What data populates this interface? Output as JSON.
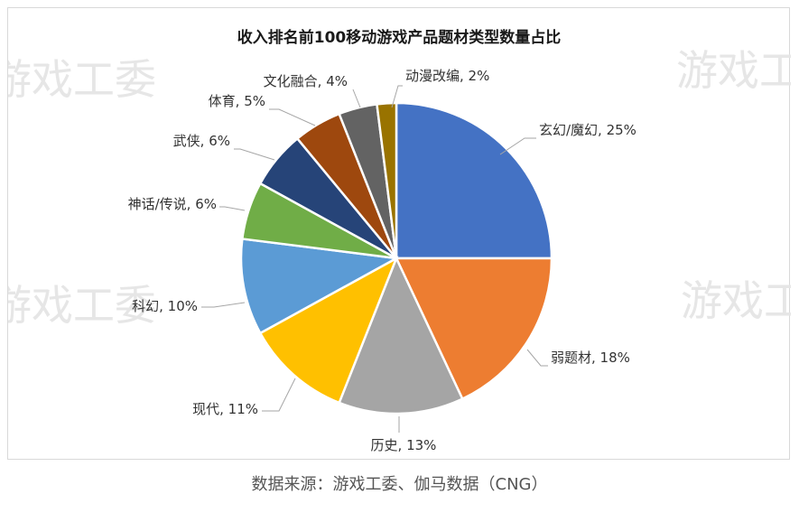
{
  "chart_data": {
    "type": "pie",
    "title": "收入排名前100移动游戏产品题材类型数量占比",
    "slices": [
      {
        "label": "玄幻/魔幻, 25%",
        "value": 25,
        "color": "#4472C4"
      },
      {
        "label": "弱题材, 18%",
        "value": 18,
        "color": "#ED7D31"
      },
      {
        "label": "历史, 13%",
        "value": 13,
        "color": "#A5A5A5"
      },
      {
        "label": "现代, 11%",
        "value": 11,
        "color": "#FFC000"
      },
      {
        "label": "科幻, 10%",
        "value": 10,
        "color": "#5B9BD5"
      },
      {
        "label": "神话/传说, 6%",
        "value": 6,
        "color": "#70AD47"
      },
      {
        "label": "武侠, 6%",
        "value": 6,
        "color": "#264478"
      },
      {
        "label": "体育, 5%",
        "value": 5,
        "color": "#9E480E"
      },
      {
        "label": "文化融合, 4%",
        "value": 4,
        "color": "#636363"
      },
      {
        "label": "动漫改编, 2%",
        "value": 2,
        "color": "#997300"
      }
    ],
    "legend": "none"
  },
  "watermark": "游戏工委",
  "source": "数据来源：游戏工委、伽马数据（CNG）"
}
